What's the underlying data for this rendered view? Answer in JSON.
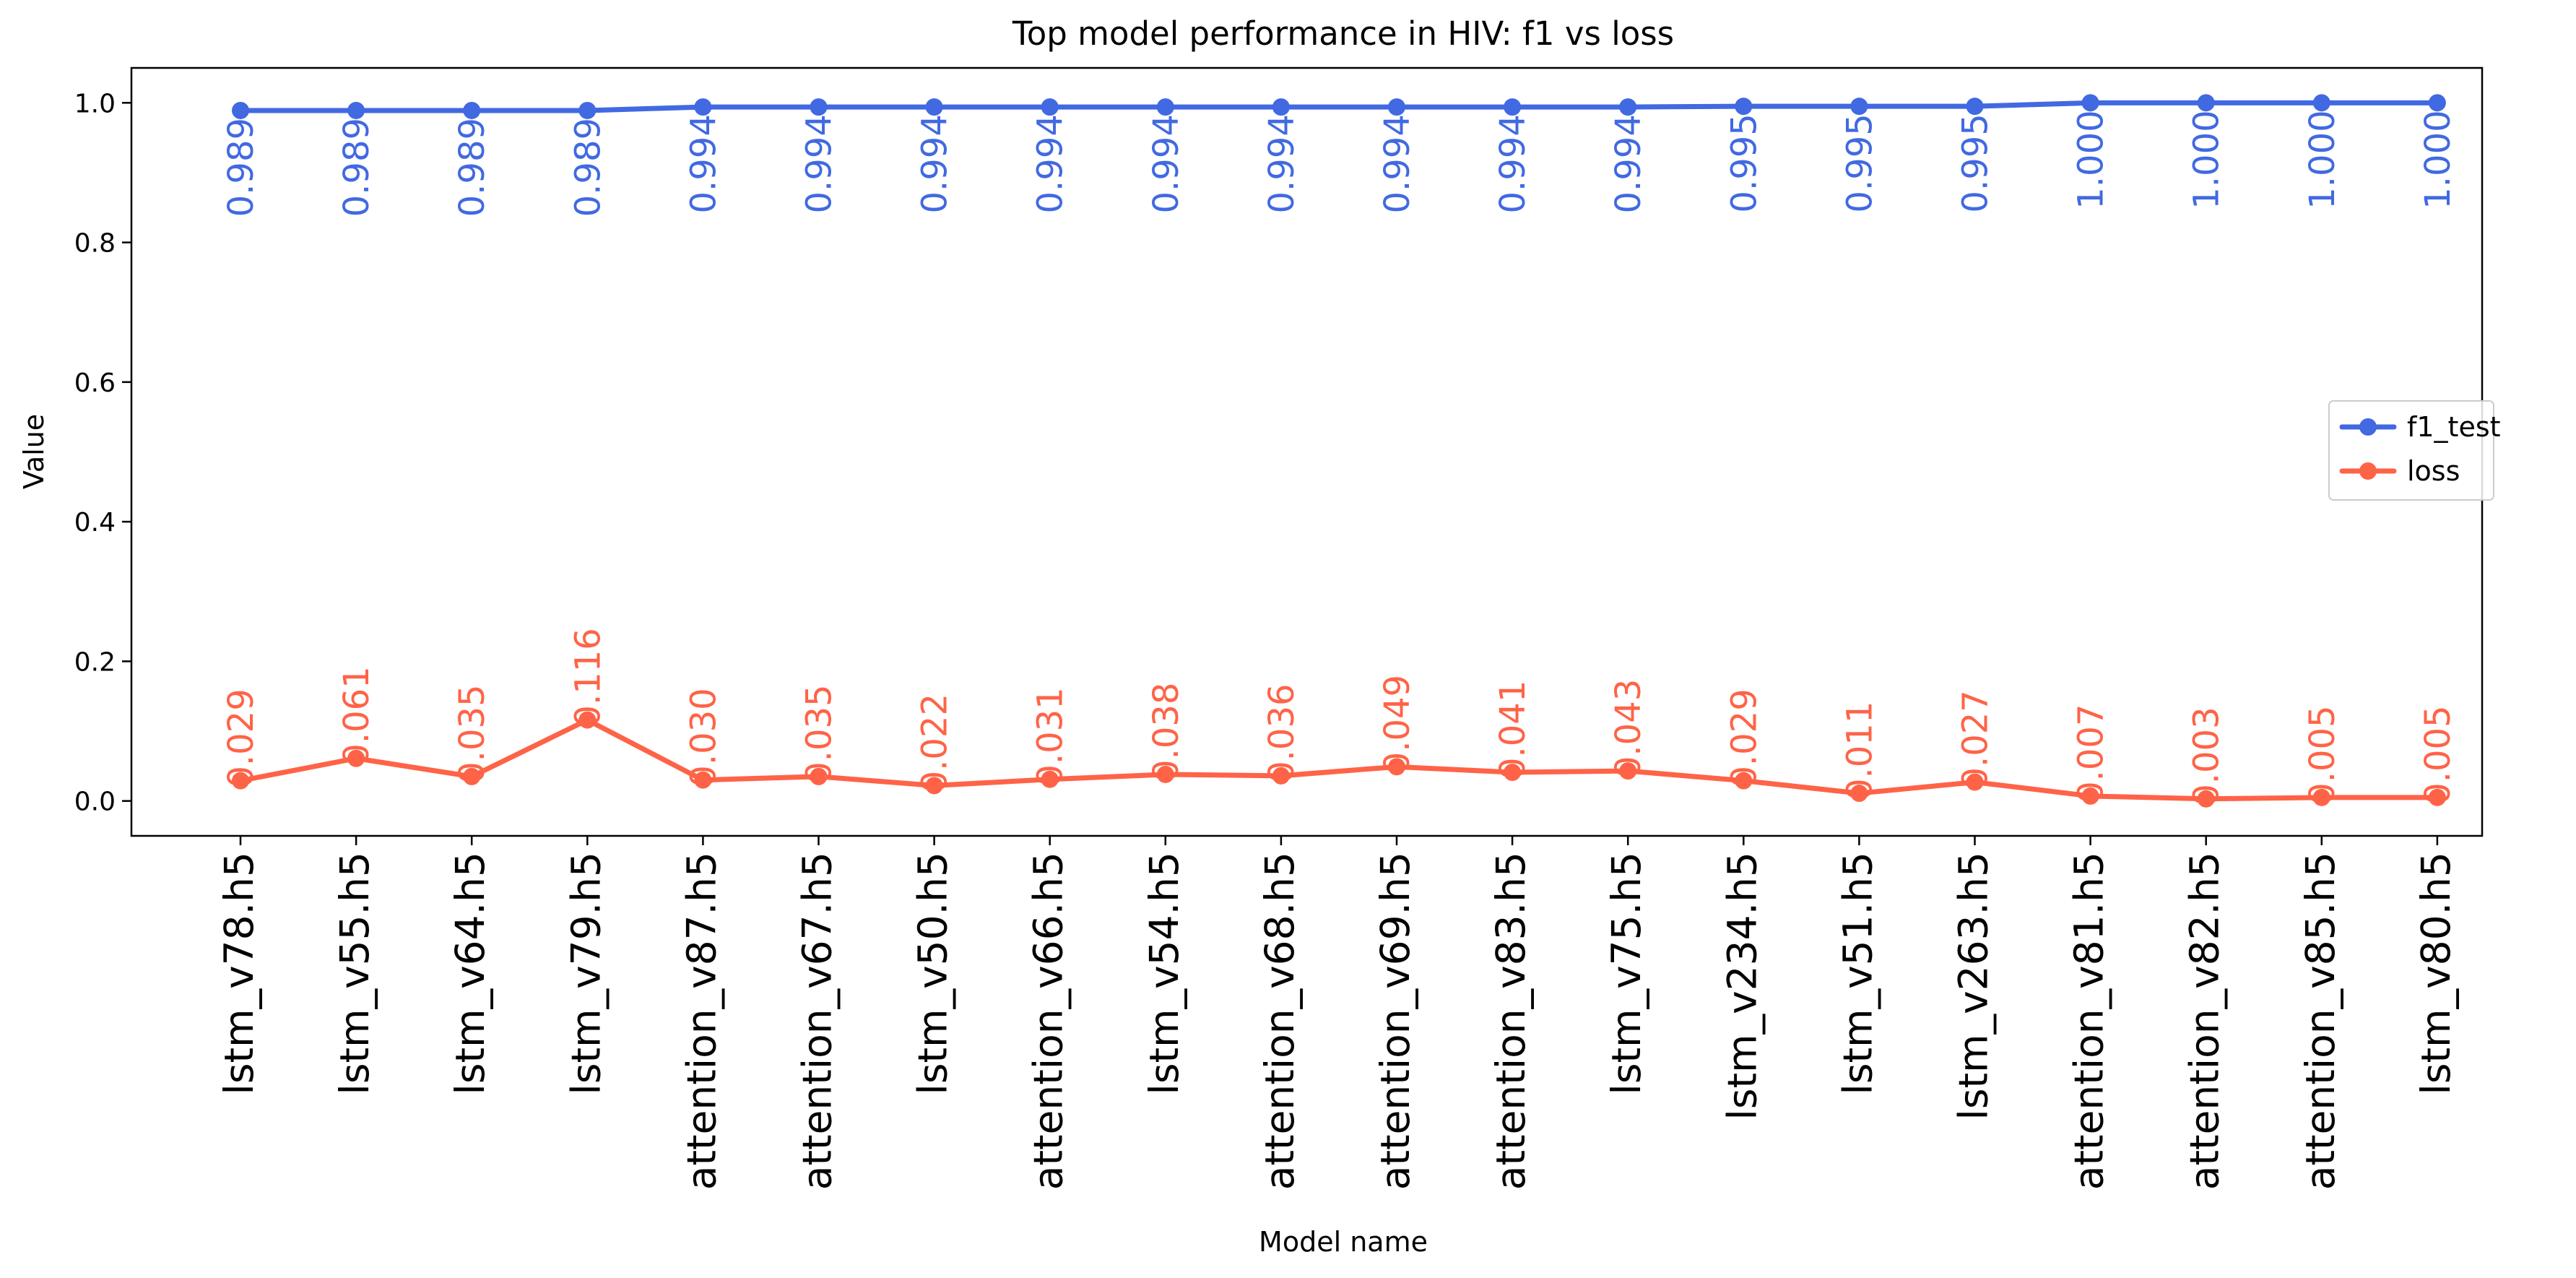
{
  "chart_data": {
    "type": "line",
    "title": "Top model performance in HIV: f1 vs loss",
    "xlabel": "Model name",
    "ylabel": "Value",
    "ylim": [
      -0.05,
      1.05
    ],
    "yticks": [
      "0.0",
      "0.2",
      "0.4",
      "0.6",
      "0.8",
      "1.0"
    ],
    "ytick_values": [
      0.0,
      0.2,
      0.4,
      0.6,
      0.8,
      1.0
    ],
    "grid": false,
    "legend_position": "center-right",
    "categories": [
      "lstm_v78.h5",
      "lstm_v55.h5",
      "lstm_v64.h5",
      "lstm_v79.h5",
      "attention_v87.h5",
      "attention_v67.h5",
      "lstm_v50.h5",
      "attention_v66.h5",
      "lstm_v54.h5",
      "attention_v68.h5",
      "attention_v69.h5",
      "attention_v83.h5",
      "lstm_v75.h5",
      "lstm_v234.h5",
      "lstm_v51.h5",
      "lstm_v263.h5",
      "attention_v81.h5",
      "attention_v82.h5",
      "attention_v85.h5",
      "lstm_v80.h5"
    ],
    "series": [
      {
        "name": "f1_test",
        "color": "#4169e1",
        "values": [
          0.989,
          0.989,
          0.989,
          0.989,
          0.994,
          0.994,
          0.994,
          0.994,
          0.994,
          0.994,
          0.994,
          0.994,
          0.994,
          0.995,
          0.995,
          0.995,
          1.0,
          1.0,
          1.0,
          1.0
        ],
        "labels": [
          "0.989",
          "0.989",
          "0.989",
          "0.989",
          "0.994",
          "0.994",
          "0.994",
          "0.994",
          "0.994",
          "0.994",
          "0.994",
          "0.994",
          "0.994",
          "0.995",
          "0.995",
          "0.995",
          "1.000",
          "1.000",
          "1.000",
          "1.000"
        ]
      },
      {
        "name": "loss",
        "color": "#ff6347",
        "values": [
          0.029,
          0.061,
          0.035,
          0.116,
          0.03,
          0.035,
          0.022,
          0.031,
          0.038,
          0.036,
          0.049,
          0.041,
          0.043,
          0.029,
          0.011,
          0.027,
          0.007,
          0.003,
          0.005,
          0.005
        ],
        "labels": [
          "0.029",
          "0.061",
          "0.035",
          "0.116",
          "0.030",
          "0.035",
          "0.022",
          "0.031",
          "0.038",
          "0.036",
          "0.049",
          "0.041",
          "0.043",
          "0.029",
          "0.011",
          "0.027",
          "0.007",
          "0.003",
          "0.005",
          "0.005"
        ]
      }
    ]
  }
}
